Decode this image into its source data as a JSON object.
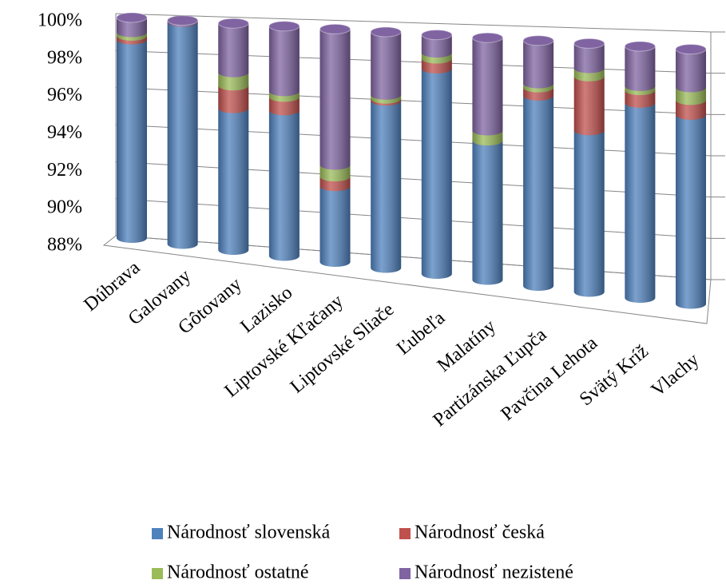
{
  "chart_data": {
    "type": "bar3d_stacked",
    "categories": [
      "Dúbrava",
      "Galovany",
      "Gôtovany",
      "Lazisko",
      "Liptovské Kľačany",
      "Liptovské Sliače",
      "Ľubeľa",
      "Malatíny",
      "Partizánska Ľupča",
      "Pavčina Lehota",
      "Svätý Kríž",
      "Vlachy"
    ],
    "series": [
      {
        "name": "Národnosť slovenská",
        "color": "#4f81bd",
        "values": [
          98.8,
          99.9,
          95.5,
          95.6,
          91.9,
          96.5,
          98.3,
          94.9,
          97.3,
          95.8,
          97.3,
          96.9
        ]
      },
      {
        "name": "Národnosť česká",
        "color": "#c0504d",
        "values": [
          0.2,
          0,
          1.2,
          0.7,
          0.5,
          0.1,
          0.5,
          0,
          0.4,
          2.6,
          0.6,
          0.7
        ]
      },
      {
        "name": "Národnosť ostatné",
        "color": "#9bbb59",
        "values": [
          0.2,
          0,
          0.7,
          0.3,
          0.6,
          0.2,
          0.3,
          0.5,
          0.2,
          0.4,
          0.2,
          0.6
        ]
      },
      {
        "name": "Národnosť nezistené",
        "color": "#8064a2",
        "values": [
          0.8,
          0.1,
          2.6,
          3.4,
          7.0,
          3.2,
          0.9,
          4.6,
          2.1,
          1.2,
          1.9,
          1.8
        ]
      }
    ],
    "ylim": [
      88,
      100
    ],
    "yticks": [
      {
        "value": 88,
        "label": "88%"
      },
      {
        "value": 90,
        "label": "90%"
      },
      {
        "value": 92,
        "label": "92%"
      },
      {
        "value": 94,
        "label": "94%"
      },
      {
        "value": 96,
        "label": "96%"
      },
      {
        "value": 98,
        "label": "98%"
      },
      {
        "value": 100,
        "label": "100%"
      }
    ],
    "grid": true,
    "legend": "bottom"
  }
}
